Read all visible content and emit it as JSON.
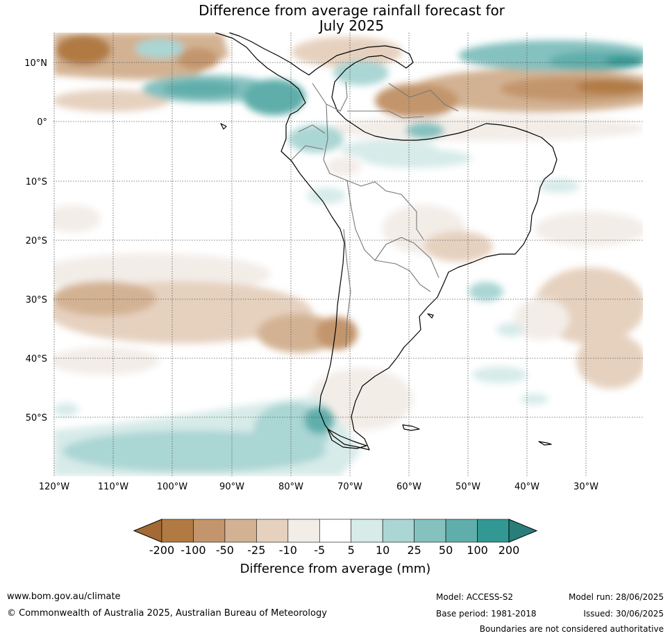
{
  "title": {
    "line1": "Difference from average rainfall forecast for",
    "line2": "July 2025"
  },
  "map": {
    "lat_labels": [
      "10°N",
      "0°",
      "10°S",
      "20°S",
      "30°S",
      "40°S",
      "50°S"
    ],
    "lon_labels": [
      "120°W",
      "110°W",
      "100°W",
      "90°W",
      "80°W",
      "70°W",
      "60°W",
      "50°W",
      "40°W",
      "30°W"
    ]
  },
  "colorbar": {
    "title": "Difference from average (mm)",
    "ticks": [
      "-200",
      "-100",
      "-50",
      "-25",
      "-10",
      "-5",
      "5",
      "10",
      "25",
      "50",
      "100",
      "200"
    ],
    "colors": [
      "#a36a35",
      "#b07a42",
      "#c3956c",
      "#d3b293",
      "#e6d1bf",
      "#f3ede8",
      "#ffffff",
      "#d7ebe9",
      "#aad6d4",
      "#84c1bf",
      "#5faeab",
      "#319893",
      "#2a7e7a"
    ]
  },
  "footer": {
    "website": "www.bom.gov.au/climate",
    "copyright": "© Commonwealth of Australia 2025, Australian Bureau of Meteorology",
    "model": "Model: ACCESS-S2",
    "base_period": "Base period: 1981-2018",
    "model_run": "Model run: 28/06/2025",
    "issued": "Issued: 30/06/2025",
    "disclaimer": "Boundaries are not considered authoritative"
  }
}
